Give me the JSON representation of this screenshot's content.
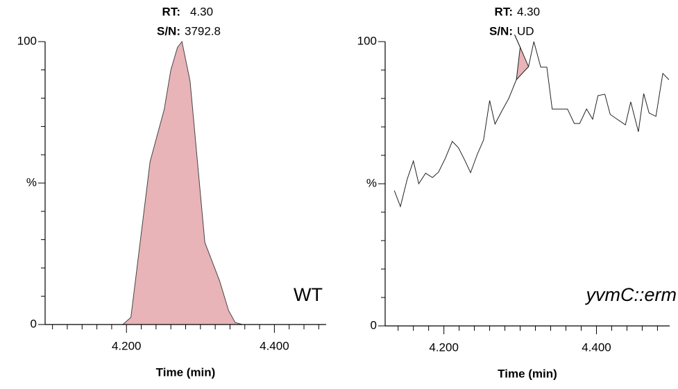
{
  "chart_data": [
    {
      "type": "area",
      "color": "#e8b4b8",
      "line_color": "#444444",
      "rt_label": "RT:",
      "rt": "4.30",
      "sn_label": "S/N:",
      "sn": "3792.8",
      "sample": "WT",
      "xlabel": "Time (min)",
      "xlim": [
        4.09,
        4.47
      ],
      "xticks": [
        {
          "value": 4.2,
          "label": "4.200"
        },
        {
          "value": 4.4,
          "label": "4.400"
        }
      ],
      "xminorticks": [
        4.1,
        4.12,
        4.14,
        4.16,
        4.18,
        4.22,
        4.24,
        4.26,
        4.28,
        4.3,
        4.32,
        4.34,
        4.36,
        4.38,
        4.42,
        4.44,
        4.46
      ],
      "ylim": [
        0,
        100
      ],
      "yticks": [
        0,
        {
          "value": 50,
          "label": "%"
        },
        100
      ],
      "yminorticks": [
        10,
        20,
        30,
        40,
        60,
        70,
        80,
        90
      ],
      "x": [
        4.09,
        4.195,
        4.206,
        4.232,
        4.251,
        4.26,
        4.269,
        4.275,
        4.286,
        4.306,
        4.326,
        4.338,
        4.347,
        4.357,
        4.47
      ],
      "values": [
        0,
        0,
        2.5,
        57.6,
        76,
        90,
        98,
        100,
        86,
        29,
        15.4,
        5,
        0.7,
        0,
        0
      ]
    },
    {
      "type": "line",
      "color": "#222222",
      "rt_label": "RT:",
      "rt": "4.30",
      "sn_label": "S/N:",
      "sn": "UD",
      "sample": "yvmC::erm",
      "xlabel": "Time (min)",
      "xlim": [
        4.123,
        4.496
      ],
      "xticks": [
        {
          "value": 4.2,
          "label": "4.200"
        },
        {
          "value": 4.4,
          "label": "4.400"
        }
      ],
      "xminorticks": [
        4.14,
        4.16,
        4.18,
        4.22,
        4.24,
        4.26,
        4.28,
        4.3,
        4.32,
        4.34,
        4.36,
        4.38,
        4.42,
        4.44,
        4.46,
        4.48
      ],
      "ylim": [
        0,
        100
      ],
      "yticks": [
        0,
        {
          "value": 50,
          "label": "%"
        },
        100
      ],
      "yminorticks": [
        10,
        20,
        30,
        40,
        60,
        70,
        80,
        90
      ],
      "x": [
        4.135,
        4.143,
        4.152,
        4.16,
        4.167,
        4.176,
        4.185,
        4.193,
        4.202,
        4.211,
        4.219,
        4.227,
        4.235,
        4.244,
        4.252,
        4.26,
        4.267,
        4.276,
        4.285,
        4.295,
        4.304,
        4.311,
        4.318,
        4.327,
        4.335,
        4.342,
        4.362,
        4.371,
        4.378,
        4.387,
        4.395,
        4.402,
        4.411,
        4.418,
        4.427,
        4.438,
        4.445,
        4.455,
        4.462,
        4.469,
        4.478,
        4.487,
        4.495
      ],
      "values": [
        47.6,
        42.0,
        51.7,
        58.0,
        50.0,
        53.7,
        52.2,
        54.1,
        59.0,
        64.9,
        62.7,
        58.5,
        53.9,
        60.5,
        65.4,
        79.3,
        71.0,
        75.6,
        80.0,
        86.6,
        89.3,
        91.2,
        100,
        91.0,
        91.0,
        76.3,
        76.3,
        71.2,
        71.2,
        76.3,
        72.7,
        81.0,
        81.5,
        74.4,
        72.7,
        70.7,
        78.8,
        68.3,
        81.7,
        74.9,
        73.7,
        88.8,
        86.6
      ],
      "peak": {
        "color": "#e8b4b8",
        "x": [
          4.295,
          4.3,
          4.311
        ],
        "values": [
          86.6,
          98,
          91.2
        ]
      }
    }
  ]
}
